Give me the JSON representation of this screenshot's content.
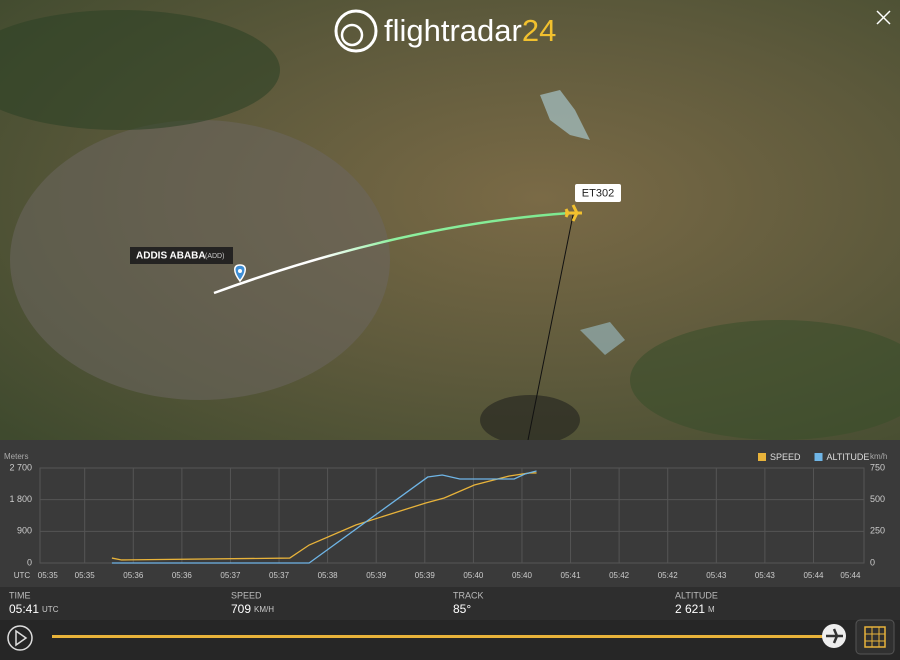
{
  "header": {
    "brand": "flightradar",
    "brand_number": "24"
  },
  "map": {
    "flight_label": "ET302",
    "airport_name": "ADDIS ABABA",
    "airport_code": "(ADD)"
  },
  "chart_data": {
    "type": "line",
    "y_label": "Meters",
    "y2_label": "km/h",
    "x_label": "UTC",
    "xlim": [
      35.04,
      43.52
    ],
    "xticks": [
      {
        "value": 35.12,
        "label": "05:35"
      },
      {
        "value": 35.5,
        "label": "05:35"
      },
      {
        "value": 36.0,
        "label": "05:36"
      },
      {
        "value": 36.5,
        "label": "05:36"
      },
      {
        "value": 37.0,
        "label": "05:37"
      },
      {
        "value": 37.5,
        "label": "05:37"
      },
      {
        "value": 38.0,
        "label": "05:38"
      },
      {
        "value": 38.5,
        "label": "05:39"
      },
      {
        "value": 39.0,
        "label": "05:39"
      },
      {
        "value": 39.5,
        "label": "05:40"
      },
      {
        "value": 40.0,
        "label": "05:40"
      },
      {
        "value": 40.5,
        "label": "05:41"
      },
      {
        "value": 41.0,
        "label": "05:42"
      },
      {
        "value": 41.5,
        "label": "05:42"
      },
      {
        "value": 42.0,
        "label": "05:43"
      },
      {
        "value": 42.5,
        "label": "05:43"
      },
      {
        "value": 43.0,
        "label": "05:44"
      },
      {
        "value": 43.38,
        "label": "05:44"
      }
    ],
    "ylim": [
      0,
      2700
    ],
    "yticks": [
      0,
      900,
      {
        "value": 1800,
        "label": "1 800"
      },
      {
        "value": 2700,
        "label": "2 700"
      }
    ],
    "y2lim": [
      0,
      750
    ],
    "y2ticks": [
      0,
      250,
      500,
      750
    ],
    "grid": true,
    "legend": "top-right",
    "series": [
      {
        "name": "SPEED",
        "color": "#e8b33a",
        "axis": "y2",
        "x": [
          35.78,
          35.88,
          37.61,
          37.81,
          38.29,
          39.01,
          39.2,
          39.51,
          39.87,
          40.08,
          40.15
        ],
        "values": [
          39,
          24,
          39,
          142,
          300,
          474,
          513,
          616,
          687,
          711,
          711
        ]
      },
      {
        "name": "ALTITUDE",
        "color": "#6fb5e6",
        "x": [
          35.78,
          37.81,
          39.03,
          39.18,
          39.36,
          39.92,
          40.03,
          40.15
        ],
        "values": [
          0,
          0,
          2443,
          2500,
          2387,
          2387,
          2529,
          2614
        ]
      }
    ]
  },
  "flight_info": [
    {
      "label": "TIME",
      "value": "05:41",
      "unit": "UTC"
    },
    {
      "label": "SPEED",
      "value": "709",
      "unit": "KM/H"
    },
    {
      "label": "TRACK",
      "value": "85°"
    },
    {
      "label": "ALTITUDE",
      "value": "2 621",
      "unit": "M"
    }
  ]
}
